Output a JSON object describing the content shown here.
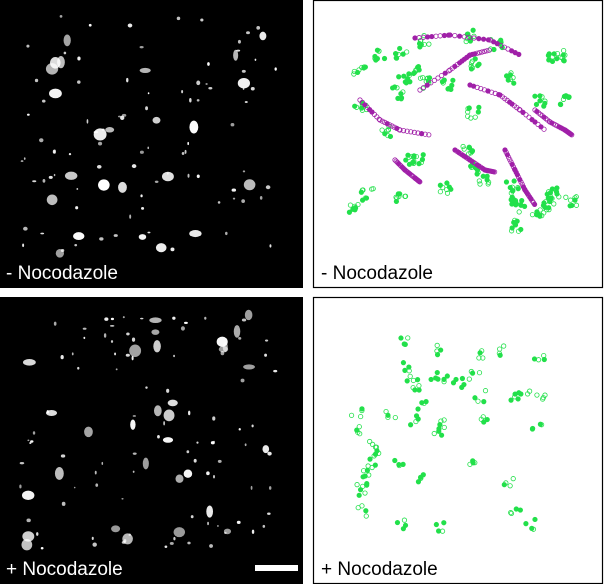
{
  "panels": [
    {
      "label": "- Nocodazole"
    },
    {
      "label": "- Nocodazole"
    },
    {
      "label": "+ Nocodazole"
    },
    {
      "label": "+ Nocodazole"
    }
  ]
}
